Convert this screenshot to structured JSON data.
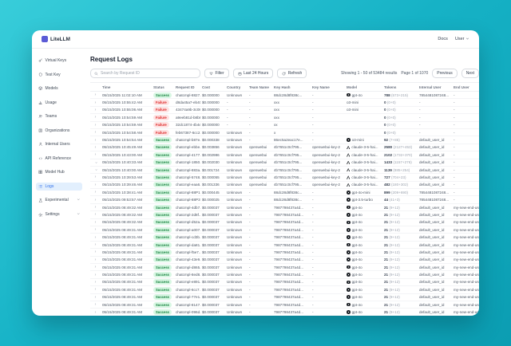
{
  "window": {
    "brand": "LiteLLM",
    "nav": {
      "docs": "Docs",
      "user": "User"
    }
  },
  "sidebar": {
    "items": [
      {
        "label": "Virtual Keys",
        "icon": "key-icon",
        "selected": false,
        "chevron": false
      },
      {
        "label": "Test Key",
        "icon": "test-key-icon",
        "selected": false,
        "chevron": false
      },
      {
        "label": "Models",
        "icon": "models-icon",
        "selected": false,
        "chevron": false
      },
      {
        "label": "Usage",
        "icon": "usage-icon",
        "selected": false,
        "chevron": false
      },
      {
        "label": "Teams",
        "icon": "teams-icon",
        "selected": false,
        "chevron": false
      },
      {
        "label": "Organizations",
        "icon": "organizations-icon",
        "selected": false,
        "chevron": false
      },
      {
        "label": "Internal Users",
        "icon": "internal-users-icon",
        "selected": false,
        "chevron": false
      },
      {
        "label": "API Reference",
        "icon": "api-reference-icon",
        "selected": false,
        "chevron": false
      },
      {
        "label": "Model Hub",
        "icon": "model-hub-icon",
        "selected": false,
        "chevron": false
      },
      {
        "label": "Logs",
        "icon": "logs-icon",
        "selected": true,
        "chevron": false
      },
      {
        "label": "Experimental",
        "icon": "experimental-icon",
        "selected": false,
        "chevron": true
      },
      {
        "label": "Settings",
        "icon": "settings-icon",
        "selected": false,
        "chevron": true
      }
    ]
  },
  "page": {
    "title": "Request Logs",
    "search_placeholder": "Search by Request ID",
    "filter_label": "Filter",
    "range_label": "Last 24 Hours",
    "refresh_label": "Refresh",
    "showing": "Showing 1 - 50 of 53484 results",
    "page_info": "Page 1 of 1070",
    "prev_label": "Previous",
    "next_label": "Next"
  },
  "table": {
    "columns": [
      "Time",
      "Status",
      "Request ID",
      "Cost",
      "Country",
      "Team Name",
      "Key Hash",
      "Key Name",
      "Model",
      "Tokens",
      "Internal User",
      "End User"
    ],
    "rows": [
      {
        "time": "05/15/2025 11:02:10 AM",
        "status": "Success",
        "request_id": "chatcmpl-8827...",
        "cost": "$0.000000",
        "country": "Unknown",
        "team": "-",
        "key_hash": "88dc28d8f838c...",
        "key_name": "-",
        "model_icon": "openai",
        "model": "gpt-4o",
        "tokens": "788",
        "tokens_breakdown": "(573+215)",
        "internal_user": "7854481087248...",
        "end_user": "-",
        "expanded": false
      },
      {
        "time": "05/15/2025 10:55:42 AM",
        "status": "Failure",
        "request_id": "d8da45a7-eb40...",
        "cost": "$0.000000",
        "country": "-",
        "team": "-",
        "key_hash": "xxx",
        "key_name": "-",
        "model_icon": "",
        "model": "o3-mini",
        "tokens": "0",
        "tokens_breakdown": "(0+0)",
        "internal_user": "-",
        "end_user": "-",
        "expanded": false
      },
      {
        "time": "05/15/2025 10:55:06 AM",
        "status": "Failure",
        "request_id": "43474a9b-3c08...",
        "cost": "$0.000000",
        "country": "-",
        "team": "-",
        "key_hash": "xxx",
        "key_name": "-",
        "model_icon": "",
        "model": "o3-mini",
        "tokens": "0",
        "tokens_breakdown": "(0+0)",
        "internal_user": "-",
        "end_user": "-",
        "expanded": false
      },
      {
        "time": "05/15/2025 10:54:59 AM",
        "status": "Failure",
        "request_id": "a9eeb81d-b8b8...",
        "cost": "$0.000000",
        "country": "-",
        "team": "-",
        "key_hash": "xxx",
        "key_name": "-",
        "model_icon": "",
        "model": "",
        "tokens": "0",
        "tokens_breakdown": "(0+0)",
        "internal_user": "-",
        "end_user": "-",
        "expanded": false
      },
      {
        "time": "05/15/2025 10:54:59 AM",
        "status": "Failure",
        "request_id": "32dc1874-4b4e...",
        "cost": "$0.000000",
        "country": "-",
        "team": "-",
        "key_hash": "xx",
        "key_name": "-",
        "model_icon": "",
        "model": "",
        "tokens": "0",
        "tokens_breakdown": "(0+0)",
        "internal_user": "-",
        "end_user": "-",
        "expanded": false
      },
      {
        "time": "05/15/2025 10:54:58 AM",
        "status": "Failure",
        "request_id": "feb67387-6cc2...",
        "cost": "$0.000000",
        "country": "Unknown",
        "team": "-",
        "key_hash": "x",
        "key_name": "-",
        "model_icon": "",
        "model": "",
        "tokens": "0",
        "tokens_breakdown": "(0+0)",
        "internal_user": "-",
        "end_user": "-",
        "expanded": false
      },
      {
        "time": "05/15/2025 10:54:54 AM",
        "status": "Success",
        "request_id": "chatcmpl-b87e...",
        "cost": "$0.000338",
        "country": "Unknown",
        "team": "-",
        "key_hash": "86ec5a2eac17e...",
        "key_name": "-",
        "model_icon": "openai",
        "model": "o3-mini",
        "tokens": "92",
        "tokens_breakdown": "(7+85)",
        "internal_user": "default_user_id",
        "end_user": "-",
        "expanded": false
      },
      {
        "time": "05/15/2025 10:45:49 AM",
        "status": "Success",
        "request_id": "chatcmpl-ebbe...",
        "cost": "$0.003856",
        "country": "Unknown",
        "team": "openwebui",
        "key_hash": "4b7651c0cf795...",
        "key_name": "openwebui-key-2",
        "model_icon": "anthropic",
        "model": "claude-3-5-hai...",
        "tokens": "2580",
        "tokens_breakdown": "(2127+453)",
        "internal_user": "default_user_id",
        "end_user": "-",
        "expanded": false
      },
      {
        "time": "05/15/2025 10:43:00 AM",
        "status": "Success",
        "request_id": "chatcmpl-4177...",
        "cost": "$0.002986",
        "country": "Unknown",
        "team": "openwebui",
        "key_hash": "4b7651c0cf795...",
        "key_name": "openwebui-key-2",
        "model_icon": "anthropic",
        "model": "claude-3-5-hai...",
        "tokens": "2102",
        "tokens_breakdown": "(1732+370)",
        "internal_user": "default_user_id",
        "end_user": "-",
        "expanded": false
      },
      {
        "time": "05/15/2025 10:40:33 AM",
        "status": "Success",
        "request_id": "chatcmpl-1850...",
        "cost": "$0.002030",
        "country": "Unknown",
        "team": "openwebui",
        "key_hash": "4b7651c0cf795...",
        "key_name": "openwebui-key-2",
        "model_icon": "anthropic",
        "model": "claude-3-5-hai...",
        "tokens": "1433",
        "tokens_breakdown": "(1157+276)",
        "internal_user": "default_user_id",
        "end_user": "-",
        "expanded": true
      },
      {
        "time": "05/15/2025 10:40:00 AM",
        "status": "Success",
        "request_id": "chatcmpl-883a...",
        "cost": "$0.001724",
        "country": "Unknown",
        "team": "openwebui",
        "key_hash": "4b7651c0cf795...",
        "key_name": "openwebui-key-2",
        "model_icon": "anthropic",
        "model": "claude-3-5-hai...",
        "tokens": "1139",
        "tokens_breakdown": "(885+254)",
        "internal_user": "default_user_id",
        "end_user": "-",
        "expanded": true
      },
      {
        "time": "05/15/2025 10:39:53 AM",
        "status": "Success",
        "request_id": "chatcmpl-5748...",
        "cost": "$0.000055",
        "country": "Unknown",
        "team": "openwebui",
        "key_hash": "4b7651c0cf795...",
        "key_name": "openwebui-key-2",
        "model_icon": "anthropic",
        "model": "claude-3-5-hai...",
        "tokens": "727",
        "tokens_breakdown": "(704+23)",
        "internal_user": "default_user_id",
        "end_user": "-",
        "expanded": false
      },
      {
        "time": "05/15/2025 10:39:46 AM",
        "status": "Success",
        "request_id": "chatcmpl-eaa6...",
        "cost": "$0.001336",
        "country": "Unknown",
        "team": "openwebui",
        "key_hash": "4b7651c0cf795...",
        "key_name": "openwebui-key-2",
        "model_icon": "anthropic",
        "model": "claude-3-5-hai...",
        "tokens": "482",
        "tokens_breakdown": "(180+302)",
        "internal_user": "default_user_id",
        "end_user": "-",
        "expanded": false
      },
      {
        "time": "05/15/2025 10:38:41 AM",
        "status": "Success",
        "request_id": "chatcmpl-88P1...",
        "cost": "$0.000445",
        "country": "Unknown",
        "team": "-",
        "key_hash": "88dc28d8f838c...",
        "key_name": "-",
        "model_icon": "openai",
        "model": "gpt-4o-mini",
        "tokens": "899",
        "tokens_breakdown": "(209+690)",
        "internal_user": "7854481087248...",
        "end_user": "-",
        "expanded": false
      },
      {
        "time": "05/15/2025 09:53:57 AM",
        "status": "Success",
        "request_id": "chatcmpl-88P3...",
        "cost": "$0.000025",
        "country": "Unknown",
        "team": "-",
        "key_hash": "88dc28d8f838c...",
        "key_name": "-",
        "model_icon": "openai",
        "model": "gpt-3.5-turbo",
        "tokens": "44",
        "tokens_breakdown": "(41+3)",
        "internal_user": "7854481087248...",
        "end_user": "-",
        "expanded": false
      },
      {
        "time": "05/15/2025 08:49:32 AM",
        "status": "Success",
        "request_id": "chatcmpl-4db7...",
        "cost": "$0.000037",
        "country": "Unknown",
        "team": "-",
        "key_hash": "7987798437a4d...",
        "key_name": "-",
        "model_icon": "openai",
        "model": "gpt-4o",
        "tokens": "21",
        "tokens_breakdown": "(9+12)",
        "internal_user": "default_user_id",
        "end_user": "my-new-end-user-7",
        "expanded": false
      },
      {
        "time": "05/15/2025 08:49:32 AM",
        "status": "Success",
        "request_id": "chatcmpl-2d8f...",
        "cost": "$0.000037",
        "country": "Unknown",
        "team": "-",
        "key_hash": "7987798437a4d...",
        "key_name": "-",
        "model_icon": "openai",
        "model": "gpt-4o",
        "tokens": "21",
        "tokens_breakdown": "(9+12)",
        "internal_user": "default_user_id",
        "end_user": "my-new-end-user-7",
        "expanded": false
      },
      {
        "time": "05/15/2025 08:49:32 AM",
        "status": "Success",
        "request_id": "chatcmpl-d52a...",
        "cost": "$0.000037",
        "country": "Unknown",
        "team": "-",
        "key_hash": "7987798437a4d...",
        "key_name": "-",
        "model_icon": "openai",
        "model": "gpt-4o",
        "tokens": "21",
        "tokens_breakdown": "(9+12)",
        "internal_user": "default_user_id",
        "end_user": "my-new-end-user-7",
        "expanded": false
      },
      {
        "time": "05/15/2025 08:49:31 AM",
        "status": "Success",
        "request_id": "chatcmpl-a007...",
        "cost": "$0.000037",
        "country": "Unknown",
        "team": "-",
        "key_hash": "7987798437a4d...",
        "key_name": "-",
        "model_icon": "openai",
        "model": "gpt-4o",
        "tokens": "21",
        "tokens_breakdown": "(9+12)",
        "internal_user": "default_user_id",
        "end_user": "my-new-end-user-7",
        "expanded": false
      },
      {
        "time": "05/15/2025 08:49:31 AM",
        "status": "Success",
        "request_id": "chatcmpl-cd3b...",
        "cost": "$0.000037",
        "country": "Unknown",
        "team": "-",
        "key_hash": "7987798437a4d...",
        "key_name": "-",
        "model_icon": "openai",
        "model": "gpt-4o",
        "tokens": "21",
        "tokens_breakdown": "(9+12)",
        "internal_user": "default_user_id",
        "end_user": "my-new-end-user-7",
        "expanded": false
      },
      {
        "time": "05/15/2025 08:49:31 AM",
        "status": "Success",
        "request_id": "chatcmpl-da81...",
        "cost": "$0.000037",
        "country": "Unknown",
        "team": "-",
        "key_hash": "7987798437a4d...",
        "key_name": "-",
        "model_icon": "openai",
        "model": "gpt-4o",
        "tokens": "21",
        "tokens_breakdown": "(9+12)",
        "internal_user": "default_user_id",
        "end_user": "my-new-end-user-7",
        "expanded": false
      },
      {
        "time": "05/15/2025 08:49:31 AM",
        "status": "Success",
        "request_id": "chatcmpl-f5e7...",
        "cost": "$0.000037",
        "country": "Unknown",
        "team": "-",
        "key_hash": "7987798437a4d...",
        "key_name": "-",
        "model_icon": "openai",
        "model": "gpt-4o",
        "tokens": "21",
        "tokens_breakdown": "(9+12)",
        "internal_user": "default_user_id",
        "end_user": "my-new-end-user-7",
        "expanded": false
      },
      {
        "time": "05/15/2025 08:49:31 AM",
        "status": "Success",
        "request_id": "chatcmpl-43e9...",
        "cost": "$0.000037",
        "country": "Unknown",
        "team": "-",
        "key_hash": "7987798437a4d...",
        "key_name": "-",
        "model_icon": "openai",
        "model": "gpt-4o",
        "tokens": "21",
        "tokens_breakdown": "(9+12)",
        "internal_user": "default_user_id",
        "end_user": "my-new-end-user-7",
        "expanded": false
      },
      {
        "time": "05/15/2025 08:49:31 AM",
        "status": "Success",
        "request_id": "chatcmpl-d865...",
        "cost": "$0.000037",
        "country": "Unknown",
        "team": "-",
        "key_hash": "7987798437a4d...",
        "key_name": "-",
        "model_icon": "openai",
        "model": "gpt-4o",
        "tokens": "21",
        "tokens_breakdown": "(9+12)",
        "internal_user": "default_user_id",
        "end_user": "my-new-end-user-7",
        "expanded": false
      },
      {
        "time": "05/15/2025 08:49:31 AM",
        "status": "Success",
        "request_id": "chatcmpl-8ed8...",
        "cost": "$0.000037",
        "country": "Unknown",
        "team": "-",
        "key_hash": "7987798437a4d...",
        "key_name": "-",
        "model_icon": "openai",
        "model": "gpt-4o",
        "tokens": "21",
        "tokens_breakdown": "(9+12)",
        "internal_user": "default_user_id",
        "end_user": "my-new-end-user-7",
        "expanded": false
      },
      {
        "time": "05/15/2025 08:49:31 AM",
        "status": "Success",
        "request_id": "chatcmpl-e891...",
        "cost": "$0.000037",
        "country": "Unknown",
        "team": "-",
        "key_hash": "7987798437a4d...",
        "key_name": "-",
        "model_icon": "openai",
        "model": "gpt-4o",
        "tokens": "21",
        "tokens_breakdown": "(9+12)",
        "internal_user": "default_user_id",
        "end_user": "my-new-end-user-7",
        "expanded": false
      },
      {
        "time": "05/15/2025 08:49:31 AM",
        "status": "Success",
        "request_id": "chatcmpl-6cc7...",
        "cost": "$0.000037",
        "country": "Unknown",
        "team": "-",
        "key_hash": "7987798437a4d...",
        "key_name": "-",
        "model_icon": "openai",
        "model": "gpt-4o",
        "tokens": "21",
        "tokens_breakdown": "(9+12)",
        "internal_user": "default_user_id",
        "end_user": "my-new-end-user-7",
        "expanded": false
      },
      {
        "time": "05/15/2025 08:49:31 AM",
        "status": "Success",
        "request_id": "chatcmpl-77e1...",
        "cost": "$0.000037",
        "country": "Unknown",
        "team": "-",
        "key_hash": "7987798437a4d...",
        "key_name": "-",
        "model_icon": "openai",
        "model": "gpt-4o",
        "tokens": "21",
        "tokens_breakdown": "(9+12)",
        "internal_user": "default_user_id",
        "end_user": "my-new-end-user-7",
        "expanded": false
      },
      {
        "time": "05/15/2025 08:49:31 AM",
        "status": "Success",
        "request_id": "chatcmpl-8147...",
        "cost": "$0.000037",
        "country": "Unknown",
        "team": "-",
        "key_hash": "7987798437a4d...",
        "key_name": "-",
        "model_icon": "openai",
        "model": "gpt-4o",
        "tokens": "21",
        "tokens_breakdown": "(9+12)",
        "internal_user": "default_user_id",
        "end_user": "my-new-end-user-7",
        "expanded": false
      },
      {
        "time": "05/15/2025 08:49:31 AM",
        "status": "Success",
        "request_id": "chatcmpl-096d...",
        "cost": "$0.000037",
        "country": "Unknown",
        "team": "-",
        "key_hash": "7987798437a4d...",
        "key_name": "-",
        "model_icon": "openai",
        "model": "gpt-4o",
        "tokens": "21",
        "tokens_breakdown": "(9+12)",
        "internal_user": "default_user_id",
        "end_user": "my-new-end-user-7",
        "expanded": false
      },
      {
        "time": "05/15/2025 08:49:31 AM",
        "status": "Success",
        "request_id": "chatcmpl-w777...",
        "cost": "$0.000037",
        "country": "Unknown",
        "team": "-",
        "key_hash": "7987798437a4d...",
        "key_name": "-",
        "model_icon": "openai",
        "model": "gpt-4o",
        "tokens": "21",
        "tokens_breakdown": "(9+12)",
        "internal_user": "default_user_id",
        "end_user": "my-new-end-user-7",
        "expanded": false
      }
    ]
  },
  "colors": {
    "background_teal": "#16b2c6",
    "selected_nav_bg": "#e2effd",
    "selected_nav_text": "#2f6feb",
    "success_text": "#15803d",
    "success_bg": "#d8f7e3",
    "failure_text": "#dc2626",
    "failure_bg": "#fee2e2"
  }
}
